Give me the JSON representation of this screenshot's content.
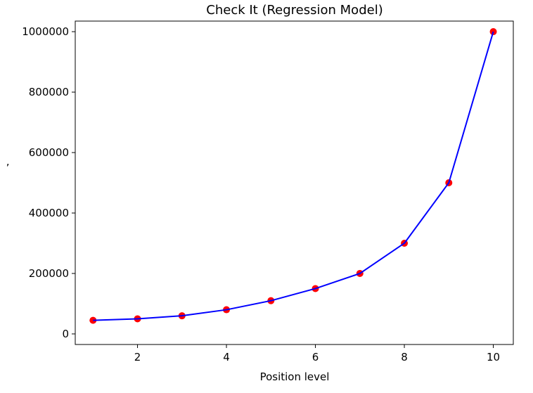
{
  "chart_data": {
    "type": "line",
    "title": "Check It (Regression Model)",
    "xlabel": "Position level",
    "ylabel": "’",
    "xlim": [
      0.6,
      10.45
    ],
    "ylim": [
      -35000,
      1035000
    ],
    "x_ticks": [
      2,
      4,
      6,
      8,
      10
    ],
    "y_ticks": [
      0,
      200000,
      400000,
      600000,
      800000,
      1000000
    ],
    "grid": false,
    "legend": "none",
    "series": [
      {
        "kind": "scatter",
        "color": "#ff0000",
        "x": [
          1,
          2,
          3,
          4,
          5,
          6,
          7,
          8,
          9,
          10
        ],
        "y": [
          45000,
          50000,
          60000,
          80000,
          110000,
          150000,
          200000,
          300000,
          500000,
          1000000
        ]
      },
      {
        "kind": "line",
        "color": "#0000ff",
        "x": [
          1,
          2,
          3,
          4,
          5,
          6,
          7,
          8,
          9,
          10
        ],
        "y": [
          45000,
          50000,
          60000,
          80000,
          110000,
          150000,
          200000,
          300000,
          500000,
          1000000
        ]
      }
    ]
  }
}
